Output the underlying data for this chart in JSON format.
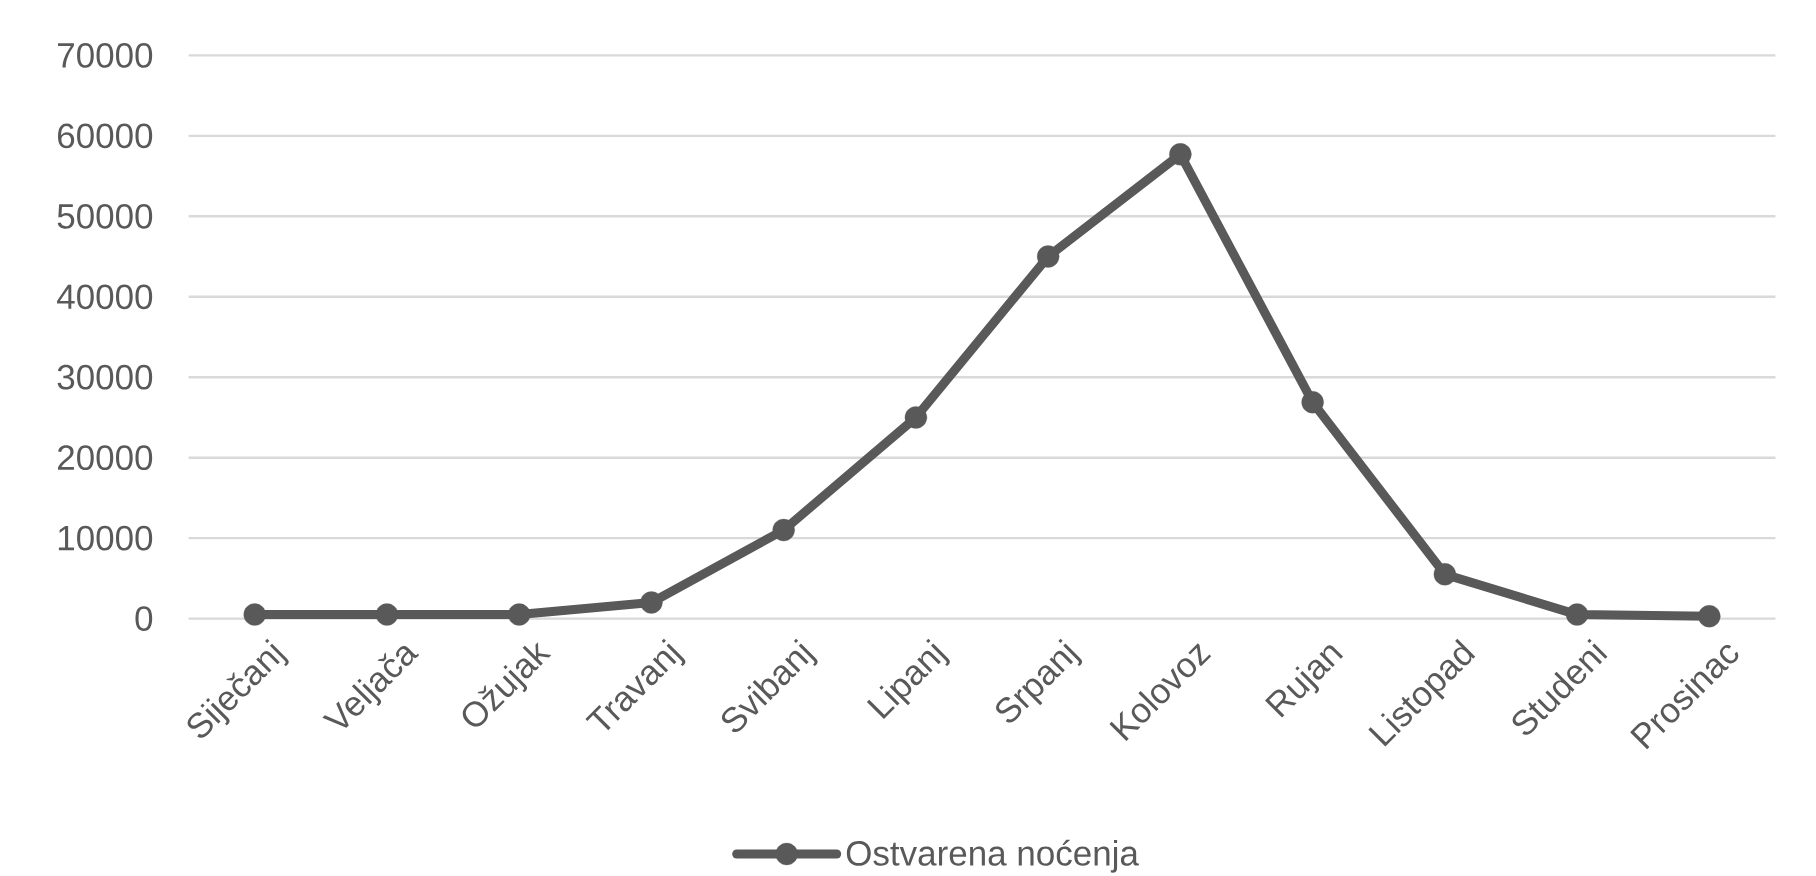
{
  "chart_data": {
    "type": "line",
    "categories": [
      "Siječanj",
      "Veljača",
      "Ožujak",
      "Travanj",
      "Svibanj",
      "Lipanj",
      "Srpanj",
      "Kolovoz",
      "Rujan",
      "Listopad",
      "Studeni",
      "Prosinac"
    ],
    "series": [
      {
        "name": "Ostvarena noćenja",
        "color": "#595959",
        "values": [
          500,
          500,
          500,
          2000,
          11000,
          25000,
          45000,
          57700,
          26900,
          5500,
          500,
          300
        ]
      }
    ],
    "ylim": [
      0,
      70000
    ],
    "yticks": [
      0,
      10000,
      20000,
      30000,
      40000,
      50000,
      60000,
      70000
    ],
    "grid": "y",
    "legend": "bottom",
    "marker": "circle",
    "line_style": "solid"
  }
}
